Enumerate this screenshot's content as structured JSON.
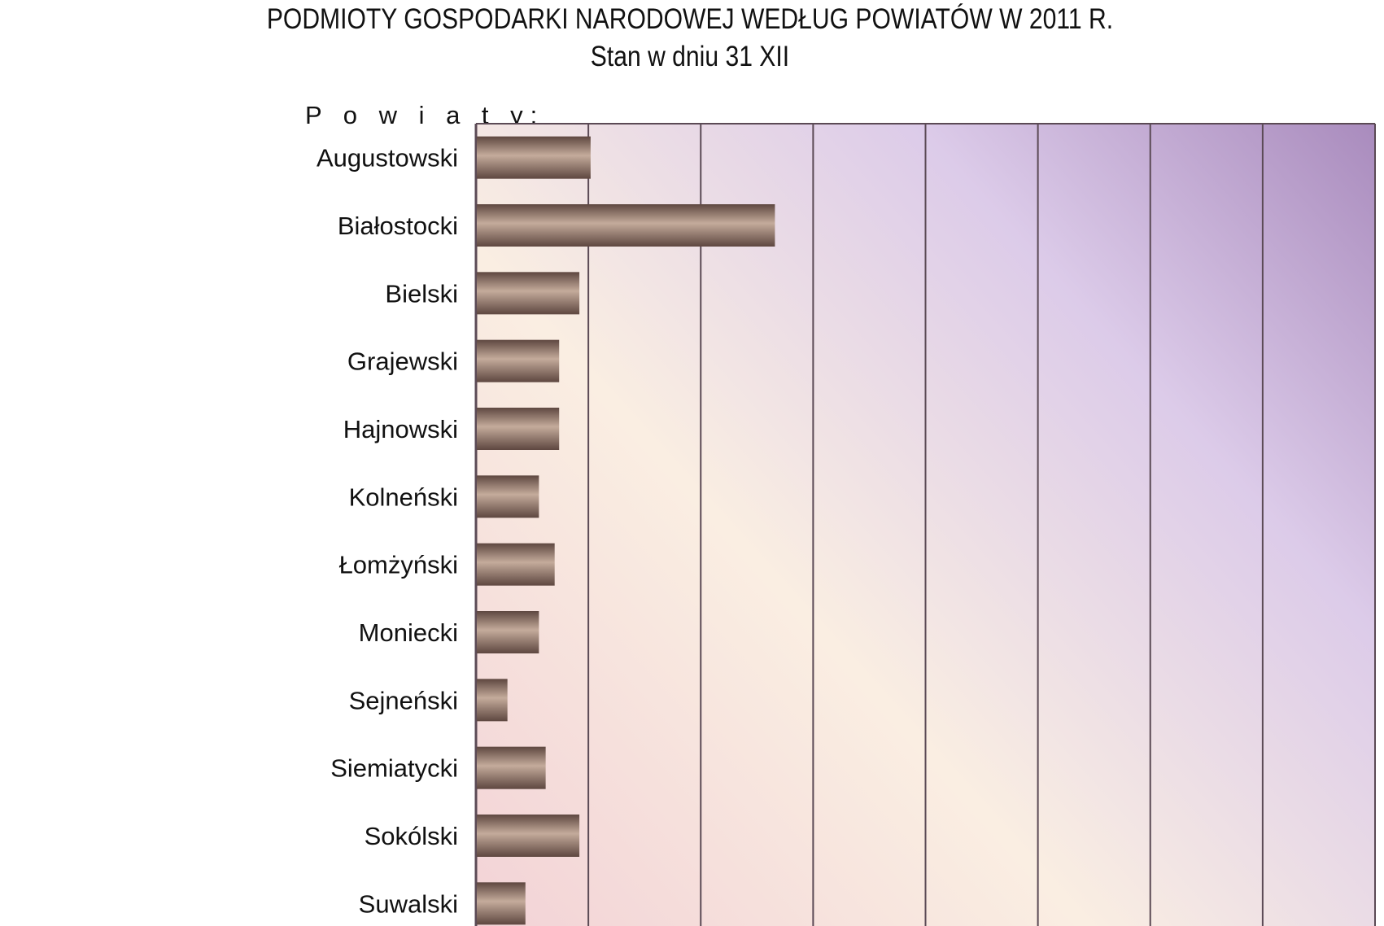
{
  "title_line1": "PODMIOTY GOSPODARKI NARODOWEJ WEDŁUG POWIATÓW W 2011 R.",
  "title_line2": "Stan w dniu 31 XII",
  "category_axis_heading": "P o w i a t y:",
  "colors": {
    "bar_dark": "#5e4740",
    "bar_light": "#c4ab9b",
    "gridline": "#5b4a55",
    "plot_bg_pink": "#f2d2d6",
    "plot_bg_cream": "#faeee2",
    "plot_bg_lavender": "#dccbe9",
    "plot_bg_purple": "#a98bbd"
  },
  "chart_data": {
    "type": "bar",
    "orientation": "horizontal",
    "title": "PODMIOTY GOSPODARKI NARODOWEJ WEDŁUG POWIATÓW W 2011 R.",
    "subtitle": "Stan w dniu 31 XII",
    "categories": [
      "Augustowski",
      "Białostocki",
      "Bielski",
      "Grajewski",
      "Hajnowski",
      "Kolneński",
      "Łomżyński",
      "Moniecki",
      "Sejneński",
      "Siemiatycki",
      "Sokólski",
      "Suwalski"
    ],
    "values": [
      5.1,
      13.3,
      4.6,
      3.7,
      3.7,
      2.8,
      3.5,
      2.8,
      1.4,
      3.1,
      4.6,
      2.2
    ],
    "xlim": [
      0,
      40
    ],
    "grid_step": 5,
    "grid": true,
    "xaxis_tick_labels": false,
    "legend": "none"
  }
}
